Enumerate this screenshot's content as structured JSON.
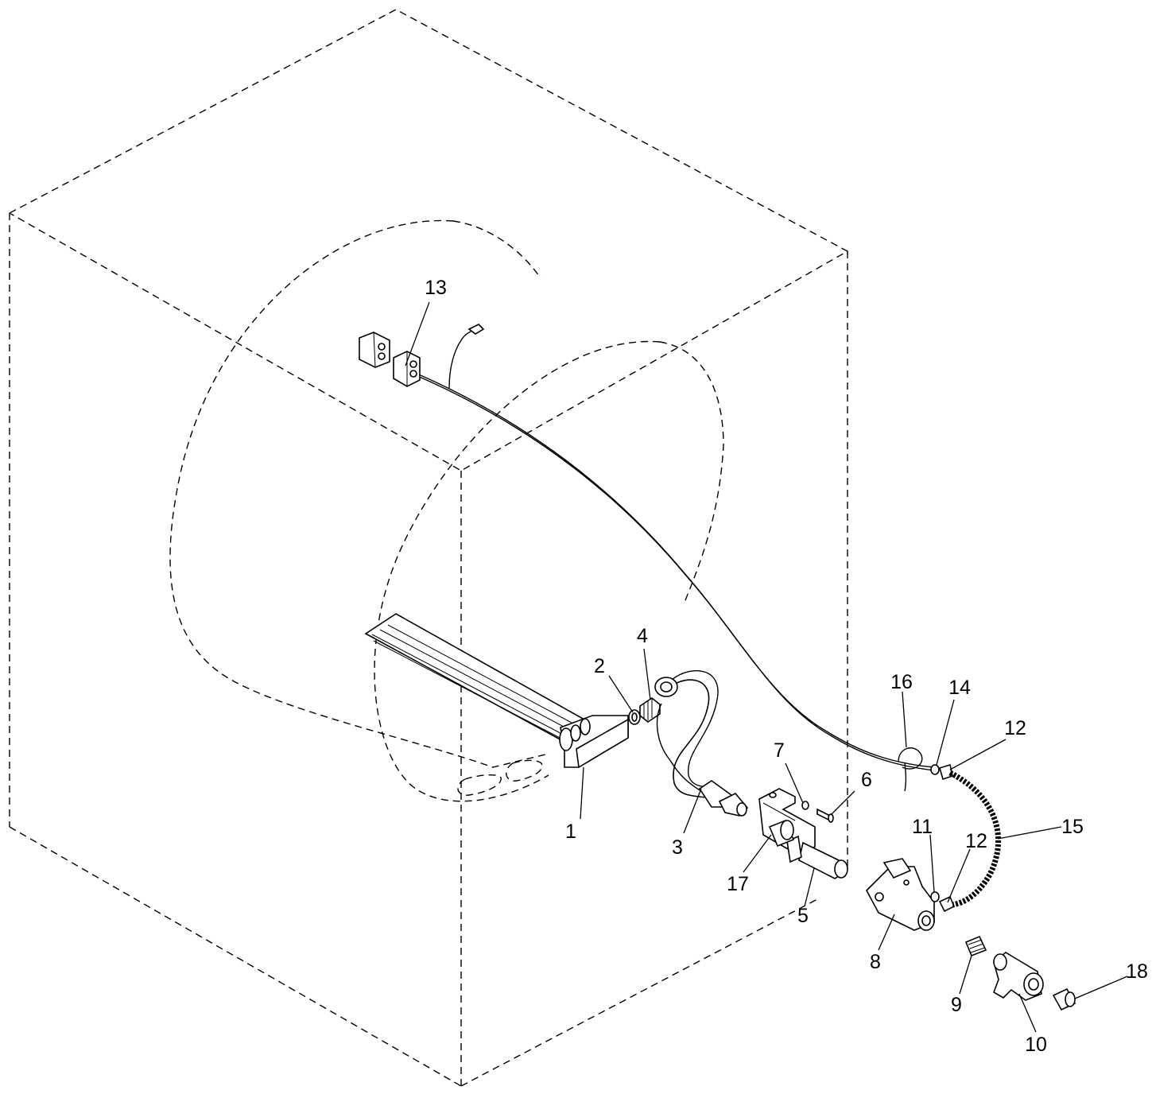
{
  "diagram": {
    "callouts": [
      {
        "id": "c1",
        "label": "1"
      },
      {
        "id": "c2",
        "label": "2"
      },
      {
        "id": "c3",
        "label": "3"
      },
      {
        "id": "c4",
        "label": "4"
      },
      {
        "id": "c5",
        "label": "5"
      },
      {
        "id": "c6",
        "label": "6"
      },
      {
        "id": "c7",
        "label": "7"
      },
      {
        "id": "c8",
        "label": "8"
      },
      {
        "id": "c9",
        "label": "9"
      },
      {
        "id": "c10",
        "label": "10"
      },
      {
        "id": "c11",
        "label": "11"
      },
      {
        "id": "c12a",
        "label": "12"
      },
      {
        "id": "c12b",
        "label": "12"
      },
      {
        "id": "c13",
        "label": "13"
      },
      {
        "id": "c14",
        "label": "14"
      },
      {
        "id": "c15",
        "label": "15"
      },
      {
        "id": "c16",
        "label": "16"
      },
      {
        "id": "c17",
        "label": "17"
      },
      {
        "id": "c18",
        "label": "18"
      }
    ]
  }
}
